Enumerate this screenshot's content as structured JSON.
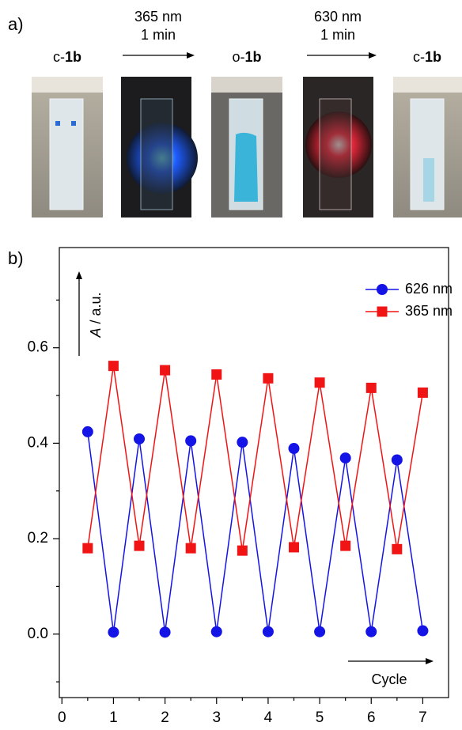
{
  "panel_a": {
    "label": "a)",
    "states": [
      {
        "prefix": "c-",
        "compound": "1b"
      },
      {
        "prefix": "o-",
        "compound": "1b"
      },
      {
        "prefix": "c-",
        "compound": "1b"
      }
    ],
    "steps": [
      {
        "wavelength": "365 nm",
        "time": "1 min",
        "color": "#1a1aff"
      },
      {
        "wavelength": "630 nm",
        "time": "1 min",
        "color": "#ff1a1a"
      }
    ]
  },
  "chart_data": {
    "type": "line",
    "panel_label": "b)",
    "y_annotation_italic": "A",
    "y_annotation": " / a.u.",
    "x_annotation": "Cycle",
    "x": [
      0.5,
      1,
      1.5,
      2,
      2.5,
      3,
      3.5,
      4,
      4.5,
      5,
      5.5,
      6,
      6.5,
      7
    ],
    "series": [
      {
        "name": "626 nm",
        "color": "#1414e6",
        "marker": "circle",
        "values": [
          0.424,
          0.004,
          0.409,
          0.004,
          0.405,
          0.005,
          0.402,
          0.005,
          0.389,
          0.005,
          0.369,
          0.005,
          0.365,
          0.007
        ]
      },
      {
        "name": "365 nm",
        "color": "#f01414",
        "marker": "square",
        "values": [
          0.18,
          0.562,
          0.185,
          0.553,
          0.18,
          0.544,
          0.175,
          0.536,
          0.182,
          0.527,
          0.185,
          0.516,
          0.178,
          0.506
        ]
      }
    ],
    "xlim": [
      -0.05,
      7.5
    ],
    "ylim": [
      -0.133,
      0.81
    ],
    "xticks": [
      0,
      1,
      2,
      3,
      4,
      5,
      6,
      7
    ],
    "x_minor_ticks": [
      0.5,
      1.5,
      2.5,
      3.5,
      4.5,
      5.5,
      6.5
    ],
    "yticks": [
      {
        "value": 0,
        "label": "0.0"
      },
      0.2,
      0.4,
      0.6
    ],
    "y_minor_ticks": [
      -0.1,
      0.1,
      0.3,
      0.5,
      0.7
    ],
    "legend": "upper right"
  }
}
